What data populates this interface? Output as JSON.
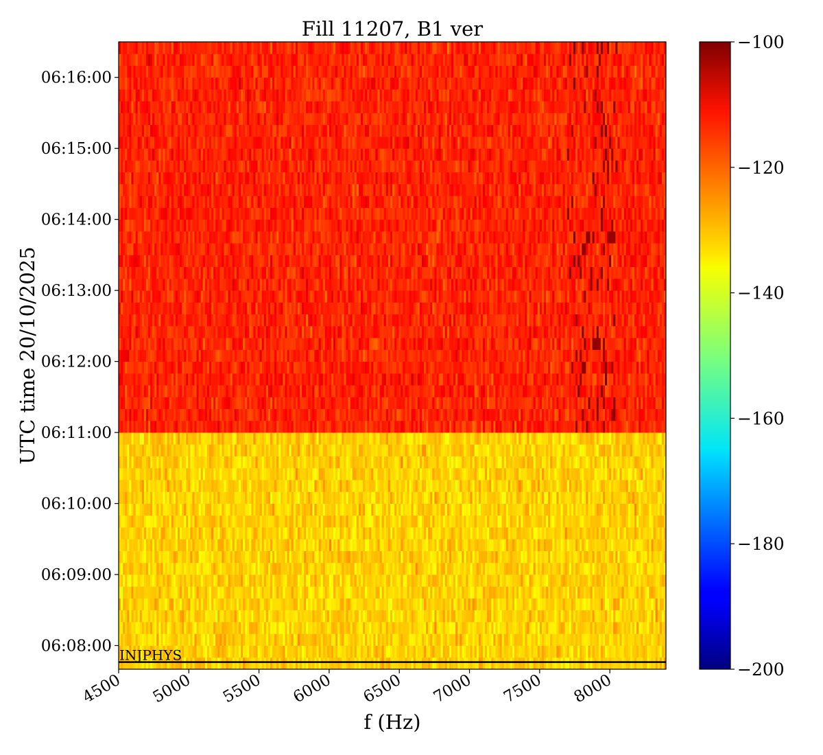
{
  "chart_data": {
    "type": "heatmap",
    "title": "Fill 11207, B1 ver",
    "xlabel": "f (Hz)",
    "ylabel": "UTC time 20/10/2025",
    "xlim": [
      4500,
      8400
    ],
    "xticks": [
      4500,
      5000,
      5500,
      6000,
      6500,
      7000,
      7500,
      8000
    ],
    "yticks": [
      {
        "t": 480,
        "label": "06:08:00"
      },
      {
        "t": 540,
        "label": "06:09:00"
      },
      {
        "t": 600,
        "label": "06:10:00"
      },
      {
        "t": 660,
        "label": "06:11:00"
      },
      {
        "t": 720,
        "label": "06:12:00"
      },
      {
        "t": 780,
        "label": "06:13:00"
      },
      {
        "t": 840,
        "label": "06:14:00"
      },
      {
        "t": 900,
        "label": "06:15:00"
      },
      {
        "t": 960,
        "label": "06:16:00"
      }
    ],
    "time_range": [
      "06:07:40",
      "06:16:30"
    ],
    "colorbar": {
      "colormap": "jet",
      "range": [
        -200,
        -100
      ],
      "ticks": [
        -100,
        -120,
        -140,
        -160,
        -180,
        -200
      ],
      "tick_labels": [
        "−100",
        "−120",
        "−140",
        "−160",
        "−180",
        "−200"
      ]
    },
    "regions": [
      {
        "from": "06:07:40",
        "to": "06:11:00",
        "level_dB": -133,
        "description": "yellow-green"
      },
      {
        "from": "06:11:00",
        "to": "06:16:30",
        "level_dB": -116,
        "description": "orange-red"
      }
    ],
    "peak_band_hz": [
      7700,
      8050
    ],
    "peak_level_dB": -103,
    "annotation": {
      "text": "INJPHYS",
      "time": "06:07:46"
    }
  }
}
